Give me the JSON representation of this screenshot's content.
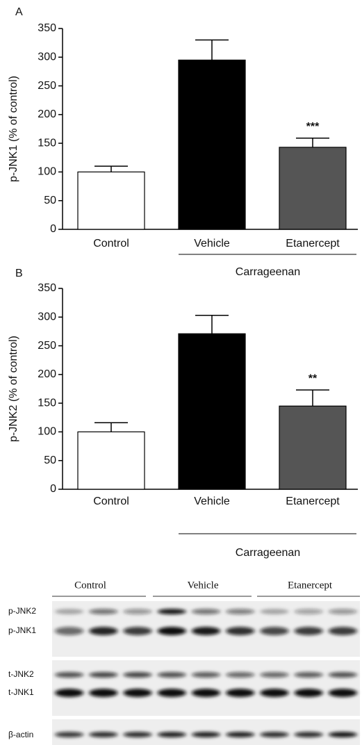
{
  "chart_data": [
    {
      "type": "bar",
      "panel": "A",
      "ylabel": "p-JNK1 (% of control)",
      "categories": [
        "Control",
        "Vehicle",
        "Etanercept"
      ],
      "values": [
        100,
        295,
        143
      ],
      "errors": [
        10,
        35,
        16
      ],
      "colors": [
        "#ffffff",
        "#000000",
        "#555555"
      ],
      "significance": [
        null,
        null,
        "***"
      ],
      "group_label": "Carrageenan",
      "ylim": [
        0,
        350
      ],
      "yticks": [
        0,
        50,
        100,
        150,
        200,
        250,
        300,
        350
      ]
    },
    {
      "type": "bar",
      "panel": "B",
      "ylabel": "p-JNK2 (% of control)",
      "categories": [
        "Control",
        "Vehicle",
        "Etanercept"
      ],
      "values": [
        100,
        271,
        145
      ],
      "errors": [
        16,
        32,
        28
      ],
      "colors": [
        "#ffffff",
        "#000000",
        "#555555"
      ],
      "significance": [
        null,
        null,
        "**"
      ],
      "group_label": "Carrageenan",
      "ylim": [
        0,
        350
      ],
      "yticks": [
        0,
        50,
        100,
        150,
        200,
        250,
        300,
        350
      ]
    }
  ],
  "blot": {
    "groups": [
      "Control",
      "Vehicle",
      "Etanercept"
    ],
    "bands": [
      "p-JNK2",
      "p-JNK1",
      "t-JNK2",
      "t-JNK1",
      "β-actin"
    ]
  }
}
